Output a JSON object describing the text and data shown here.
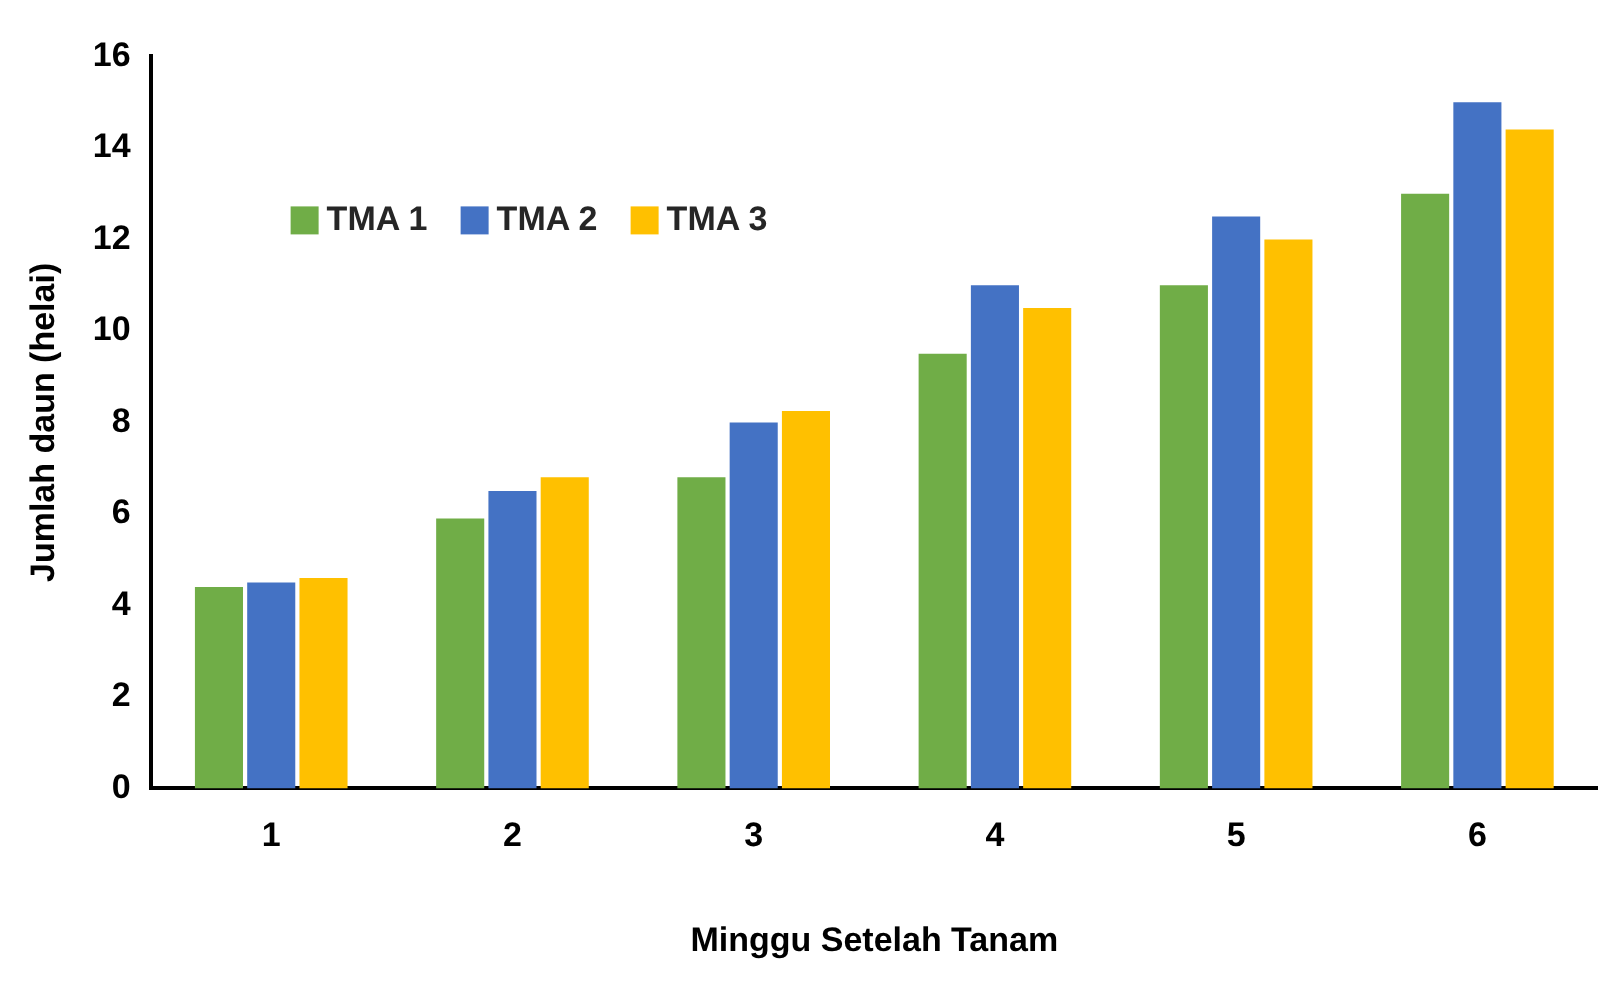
{
  "chart_data": {
    "type": "bar",
    "xlabel": "Minggu Setelah Tanam",
    "ylabel": "Jumlah daun (helai)",
    "categories": [
      "1",
      "2",
      "3",
      "4",
      "5",
      "6"
    ],
    "series": [
      {
        "name": "TMA 1",
        "color": "#70ad47",
        "values": [
          4.4,
          5.9,
          6.8,
          9.5,
          11.0,
          13.0
        ]
      },
      {
        "name": "TMA 2",
        "color": "#4472c4",
        "values": [
          4.5,
          6.5,
          8.0,
          11.0,
          12.5,
          15.0
        ]
      },
      {
        "name": "TMA 3",
        "color": "#ffc000",
        "values": [
          4.6,
          6.8,
          8.25,
          10.5,
          12.0,
          14.4
        ]
      }
    ],
    "ylim": [
      0,
      16
    ],
    "yticks": [
      0,
      2,
      4,
      6,
      8,
      10,
      12,
      14,
      16
    ],
    "grid": false,
    "legend": "top left"
  }
}
